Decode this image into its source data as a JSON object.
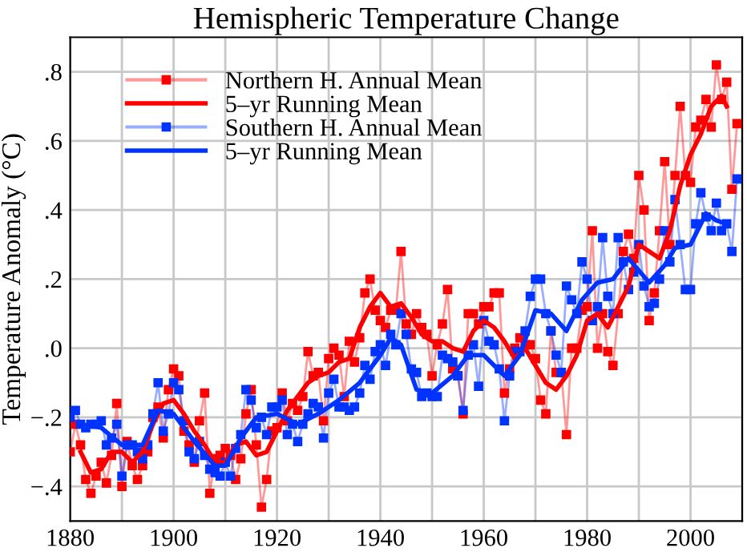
{
  "chart_data": {
    "type": "line",
    "title": "Hemispheric Temperature Change",
    "ylabel": "Temperature Anomaly (°C)",
    "xlim": [
      1880,
      2010
    ],
    "ylim": [
      -0.5,
      0.9
    ],
    "xticks": [
      1880,
      {
        "value": 1890,
        "label": null
      },
      1900,
      {
        "value": 1910,
        "label": null
      },
      1920,
      {
        "value": 1930,
        "label": null
      },
      1940,
      {
        "value": 1950,
        "label": null
      },
      1960,
      {
        "value": 1970,
        "label": null
      },
      1980,
      {
        "value": 1990,
        "label": null
      },
      2000,
      {
        "value": 2010,
        "label": null
      }
    ],
    "yticks": [
      {
        "value": -0.4,
        "label": "−.4"
      },
      {
        "value": -0.2,
        "label": "−.2"
      },
      {
        "value": 0.0,
        "label": ".0"
      },
      {
        "value": 0.2,
        "label": ".2"
      },
      {
        "value": 0.4,
        "label": ".4"
      },
      {
        "value": 0.6,
        "label": ".6"
      },
      {
        "value": 0.8,
        "label": ".8"
      }
    ],
    "grid": true,
    "legend": "top left",
    "series": [
      {
        "name": "Northern H. Annual Mean",
        "color": "#ff0000",
        "marker": "square",
        "x": [
          1880,
          1881,
          1882,
          1883,
          1884,
          1885,
          1886,
          1887,
          1888,
          1889,
          1890,
          1891,
          1892,
          1893,
          1894,
          1895,
          1896,
          1897,
          1898,
          1899,
          1900,
          1901,
          1902,
          1903,
          1904,
          1905,
          1906,
          1907,
          1908,
          1909,
          1910,
          1911,
          1912,
          1913,
          1914,
          1915,
          1916,
          1917,
          1918,
          1919,
          1920,
          1921,
          1922,
          1923,
          1924,
          1925,
          1926,
          1927,
          1928,
          1929,
          1930,
          1931,
          1932,
          1933,
          1934,
          1935,
          1936,
          1937,
          1938,
          1939,
          1940,
          1941,
          1942,
          1943,
          1944,
          1945,
          1946,
          1947,
          1948,
          1949,
          1950,
          1951,
          1952,
          1953,
          1954,
          1955,
          1956,
          1957,
          1958,
          1959,
          1960,
          1961,
          1962,
          1963,
          1964,
          1965,
          1966,
          1967,
          1968,
          1969,
          1970,
          1971,
          1972,
          1973,
          1974,
          1975,
          1976,
          1977,
          1978,
          1979,
          1980,
          1981,
          1982,
          1983,
          1984,
          1985,
          1986,
          1987,
          1988,
          1989,
          1990,
          1991,
          1992,
          1993,
          1994,
          1995,
          1996,
          1997,
          1998,
          1999,
          2000,
          2001,
          2002,
          2003,
          2004,
          2005,
          2006,
          2007,
          2008,
          2009
        ],
        "values": [
          -0.3,
          -0.22,
          -0.28,
          -0.38,
          -0.42,
          -0.37,
          -0.33,
          -0.39,
          -0.31,
          -0.16,
          -0.4,
          -0.27,
          -0.34,
          -0.38,
          -0.34,
          -0.3,
          -0.2,
          -0.17,
          -0.26,
          -0.12,
          -0.06,
          -0.08,
          -0.24,
          -0.28,
          -0.33,
          -0.21,
          -0.13,
          -0.42,
          -0.32,
          -0.31,
          -0.29,
          -0.31,
          -0.38,
          -0.32,
          -0.19,
          -0.12,
          -0.28,
          -0.46,
          -0.38,
          -0.24,
          -0.23,
          -0.13,
          -0.21,
          -0.16,
          -0.18,
          -0.14,
          -0.01,
          -0.08,
          -0.07,
          -0.21,
          -0.03,
          0.0,
          -0.02,
          -0.14,
          0.02,
          -0.04,
          0.03,
          0.16,
          0.2,
          0.11,
          0.08,
          0.06,
          0.11,
          0.11,
          0.28,
          0.07,
          0.04,
          0.1,
          0.06,
          0.04,
          -0.08,
          0.01,
          0.07,
          0.17,
          -0.06,
          -0.08,
          -0.19,
          0.1,
          0.1,
          0.07,
          0.12,
          0.12,
          0.16,
          0.16,
          -0.13,
          -0.06,
          0.0,
          0.03,
          0.01,
          0.01,
          -0.03,
          -0.15,
          -0.19,
          0.05,
          -0.07,
          -0.07,
          -0.25,
          0.0,
          0.0,
          0.11,
          0.12,
          0.34,
          0.0,
          0.1,
          -0.01,
          -0.05,
          0.1,
          0.28,
          0.33,
          0.26,
          0.5,
          0.4,
          0.08,
          0.16,
          0.34,
          0.54,
          0.3,
          0.5,
          0.7,
          0.5,
          0.48,
          0.64,
          0.66,
          0.72,
          0.64,
          0.82,
          0.72,
          0.77,
          0.46,
          0.65
        ]
      },
      {
        "name": "5–yr Running Mean",
        "color": "#ff0000",
        "marker": "none",
        "x": [
          1882,
          1884,
          1886,
          1888,
          1890,
          1892,
          1894,
          1896,
          1898,
          1900,
          1902,
          1904,
          1906,
          1908,
          1910,
          1912,
          1914,
          1916,
          1918,
          1920,
          1922,
          1924,
          1926,
          1928,
          1930,
          1932,
          1934,
          1936,
          1938,
          1940,
          1942,
          1944,
          1946,
          1948,
          1950,
          1952,
          1954,
          1956,
          1958,
          1960,
          1962,
          1964,
          1966,
          1968,
          1970,
          1972,
          1974,
          1976,
          1978,
          1980,
          1982,
          1984,
          1986,
          1988,
          1990,
          1992,
          1994,
          1996,
          1998,
          2000,
          2002,
          2004,
          2006,
          2007
        ],
        "values": [
          -0.3,
          -0.36,
          -0.35,
          -0.3,
          -0.3,
          -0.33,
          -0.3,
          -0.22,
          -0.16,
          -0.15,
          -0.19,
          -0.24,
          -0.28,
          -0.33,
          -0.33,
          -0.28,
          -0.27,
          -0.31,
          -0.3,
          -0.24,
          -0.18,
          -0.14,
          -0.1,
          -0.08,
          -0.07,
          -0.04,
          -0.03,
          0.06,
          0.12,
          0.16,
          0.12,
          0.13,
          0.09,
          0.04,
          0.02,
          0.02,
          0.0,
          -0.01,
          0.05,
          0.08,
          0.06,
          0.02,
          -0.03,
          0.0,
          -0.05,
          -0.1,
          -0.12,
          -0.08,
          -0.02,
          0.08,
          0.1,
          0.06,
          0.12,
          0.18,
          0.3,
          0.28,
          0.26,
          0.34,
          0.47,
          0.56,
          0.62,
          0.7,
          0.73,
          0.7
        ]
      },
      {
        "name": "Southern H. Annual Mean",
        "color": "#0033ff",
        "marker": "square",
        "x": [
          1880,
          1881,
          1882,
          1883,
          1884,
          1885,
          1886,
          1887,
          1888,
          1889,
          1890,
          1891,
          1892,
          1893,
          1894,
          1895,
          1896,
          1897,
          1898,
          1899,
          1900,
          1901,
          1902,
          1903,
          1904,
          1905,
          1906,
          1907,
          1908,
          1909,
          1910,
          1911,
          1912,
          1913,
          1914,
          1915,
          1916,
          1917,
          1918,
          1919,
          1920,
          1921,
          1922,
          1923,
          1924,
          1925,
          1926,
          1927,
          1928,
          1929,
          1930,
          1931,
          1932,
          1933,
          1934,
          1935,
          1936,
          1937,
          1938,
          1939,
          1940,
          1941,
          1942,
          1943,
          1944,
          1945,
          1946,
          1947,
          1948,
          1949,
          1950,
          1951,
          1952,
          1953,
          1954,
          1955,
          1956,
          1957,
          1958,
          1959,
          1960,
          1961,
          1962,
          1963,
          1964,
          1965,
          1966,
          1967,
          1968,
          1969,
          1970,
          1971,
          1972,
          1973,
          1974,
          1975,
          1976,
          1977,
          1978,
          1979,
          1980,
          1981,
          1982,
          1983,
          1984,
          1985,
          1986,
          1987,
          1988,
          1989,
          1990,
          1991,
          1992,
          1993,
          1994,
          1995,
          1996,
          1997,
          1998,
          1999,
          2000,
          2001,
          2002,
          2003,
          2004,
          2005,
          2006,
          2007,
          2008,
          2009
        ],
        "values": [
          -0.2,
          -0.18,
          -0.22,
          -0.23,
          -0.22,
          -0.22,
          -0.21,
          -0.28,
          -0.26,
          -0.22,
          -0.37,
          -0.28,
          -0.28,
          -0.3,
          -0.32,
          -0.28,
          -0.19,
          -0.1,
          -0.24,
          -0.19,
          -0.1,
          -0.12,
          -0.21,
          -0.3,
          -0.32,
          -0.27,
          -0.31,
          -0.35,
          -0.36,
          -0.37,
          -0.33,
          -0.37,
          -0.29,
          -0.25,
          -0.12,
          -0.15,
          -0.23,
          -0.2,
          -0.25,
          -0.17,
          -0.17,
          -0.15,
          -0.25,
          -0.22,
          -0.27,
          -0.22,
          -0.19,
          -0.16,
          -0.17,
          -0.26,
          -0.13,
          -0.09,
          -0.17,
          -0.17,
          -0.18,
          -0.17,
          -0.13,
          -0.05,
          -0.09,
          -0.01,
          0.01,
          -0.05,
          0.04,
          0.01,
          0.1,
          0.04,
          -0.06,
          -0.07,
          -0.14,
          -0.13,
          -0.14,
          -0.14,
          -0.02,
          -0.03,
          -0.04,
          -0.08,
          -0.18,
          -0.02,
          0.01,
          -0.11,
          0.08,
          0.02,
          0.01,
          -0.06,
          -0.21,
          -0.08,
          -0.01,
          -0.01,
          0.05,
          0.15,
          0.2,
          0.2,
          0.1,
          0.05,
          -0.02,
          -0.07,
          0.18,
          0.14,
          0.1,
          0.25,
          0.2,
          0.08,
          0.12,
          0.32,
          0.15,
          0.1,
          0.32,
          0.25,
          0.17,
          0.22,
          0.3,
          0.18,
          0.12,
          0.13,
          0.2,
          0.34,
          0.25,
          0.43,
          0.3,
          0.17,
          0.17,
          0.36,
          0.45,
          0.38,
          0.34,
          0.42,
          0.34,
          0.36,
          0.28,
          0.49
        ]
      },
      {
        "name": "5–yr Running Mean",
        "color": "#0033ff",
        "marker": "none",
        "x": [
          1882,
          1886,
          1890,
          1894,
          1897,
          1900,
          1904,
          1908,
          1910,
          1913,
          1916,
          1920,
          1924,
          1928,
          1932,
          1936,
          1940,
          1942,
          1944,
          1947,
          1950,
          1954,
          1957,
          1960,
          1964,
          1967,
          1970,
          1973,
          1976,
          1979,
          1982,
          1985,
          1988,
          1992,
          1995,
          1997,
          2000,
          2003,
          2005,
          2007
        ],
        "values": [
          -0.22,
          -0.23,
          -0.28,
          -0.28,
          -0.18,
          -0.19,
          -0.27,
          -0.34,
          -0.34,
          -0.26,
          -0.2,
          -0.19,
          -0.22,
          -0.19,
          -0.15,
          -0.1,
          -0.02,
          0.03,
          0.01,
          -0.12,
          -0.13,
          -0.08,
          -0.02,
          -0.02,
          -0.08,
          -0.02,
          0.11,
          0.1,
          0.05,
          0.14,
          0.19,
          0.2,
          0.26,
          0.19,
          0.24,
          0.29,
          0.3,
          0.39,
          0.37,
          0.36
        ]
      }
    ]
  }
}
